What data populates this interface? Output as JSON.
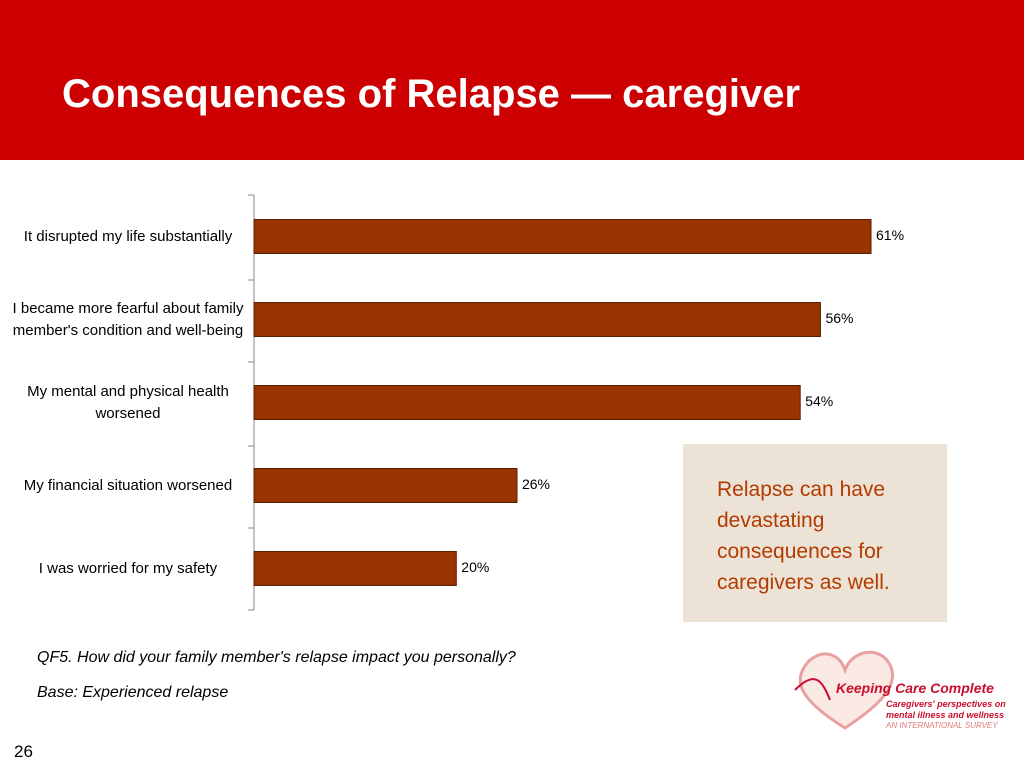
{
  "header": {
    "title": "Consequences of Relapse — caregiver"
  },
  "chart_data": {
    "type": "bar",
    "orientation": "horizontal",
    "categories": [
      "It disrupted my life substantially",
      "I became more fearful about family member's condition and well-being",
      "My mental and physical health worsened",
      "My financial situation worsened",
      "I was worried for my safety"
    ],
    "values": [
      61,
      56,
      54,
      26,
      20
    ],
    "value_labels": [
      "61%",
      "56%",
      "54%",
      "26%",
      "20%"
    ],
    "color": "#993300"
  },
  "callout": "Relapse can have devastating consequences for caregivers as well.",
  "notes": [
    "QF5. How did your family member's relapse impact you personally?",
    "Base: Experienced relapse"
  ],
  "page_number": "26",
  "logo": {
    "name": "Keeping Care Complete",
    "lines": [
      "Caregivers' perspectives on",
      "mental illness and wellness",
      "AN INTERNATIONAL SURVEY"
    ]
  }
}
